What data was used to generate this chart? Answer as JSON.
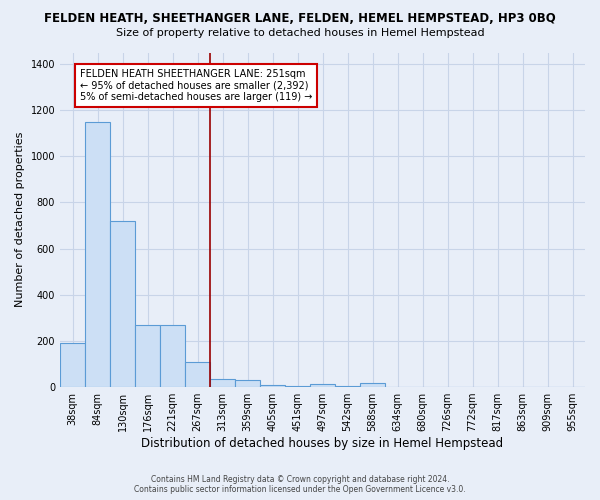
{
  "title": "FELDEN HEATH, SHEETHANGER LANE, FELDEN, HEMEL HEMPSTEAD, HP3 0BQ",
  "subtitle": "Size of property relative to detached houses in Hemel Hempstead",
  "xlabel": "Distribution of detached houses by size in Hemel Hempstead",
  "ylabel": "Number of detached properties",
  "footnote1": "Contains HM Land Registry data © Crown copyright and database right 2024.",
  "footnote2": "Contains public sector information licensed under the Open Government Licence v3.0.",
  "categories": [
    "38sqm",
    "84sqm",
    "130sqm",
    "176sqm",
    "221sqm",
    "267sqm",
    "313sqm",
    "359sqm",
    "405sqm",
    "451sqm",
    "497sqm",
    "542sqm",
    "588sqm",
    "634sqm",
    "680sqm",
    "726sqm",
    "772sqm",
    "817sqm",
    "863sqm",
    "909sqm",
    "955sqm"
  ],
  "values": [
    190,
    1150,
    720,
    270,
    270,
    110,
    35,
    30,
    10,
    5,
    12,
    5,
    18,
    0,
    0,
    0,
    0,
    0,
    0,
    0,
    0
  ],
  "bar_color": "#ccdff5",
  "bar_edge_color": "#5b9bd5",
  "grid_color": "#c8d4e8",
  "background_color": "#e8eef8",
  "vline_x": 5.5,
  "vline_color": "#990000",
  "annotation_text": "FELDEN HEATH SHEETHANGER LANE: 251sqm\n← 95% of detached houses are smaller (2,392)\n5% of semi-detached houses are larger (119) →",
  "annotation_box_color": "white",
  "annotation_box_edge": "#cc0000",
  "ylim": [
    0,
    1450
  ],
  "yticks": [
    0,
    200,
    400,
    600,
    800,
    1000,
    1200,
    1400
  ],
  "title_fontsize": 8.5,
  "subtitle_fontsize": 8,
  "xlabel_fontsize": 8.5,
  "ylabel_fontsize": 8,
  "tick_fontsize": 7,
  "annot_fontsize": 7,
  "footnote_fontsize": 5.5
}
